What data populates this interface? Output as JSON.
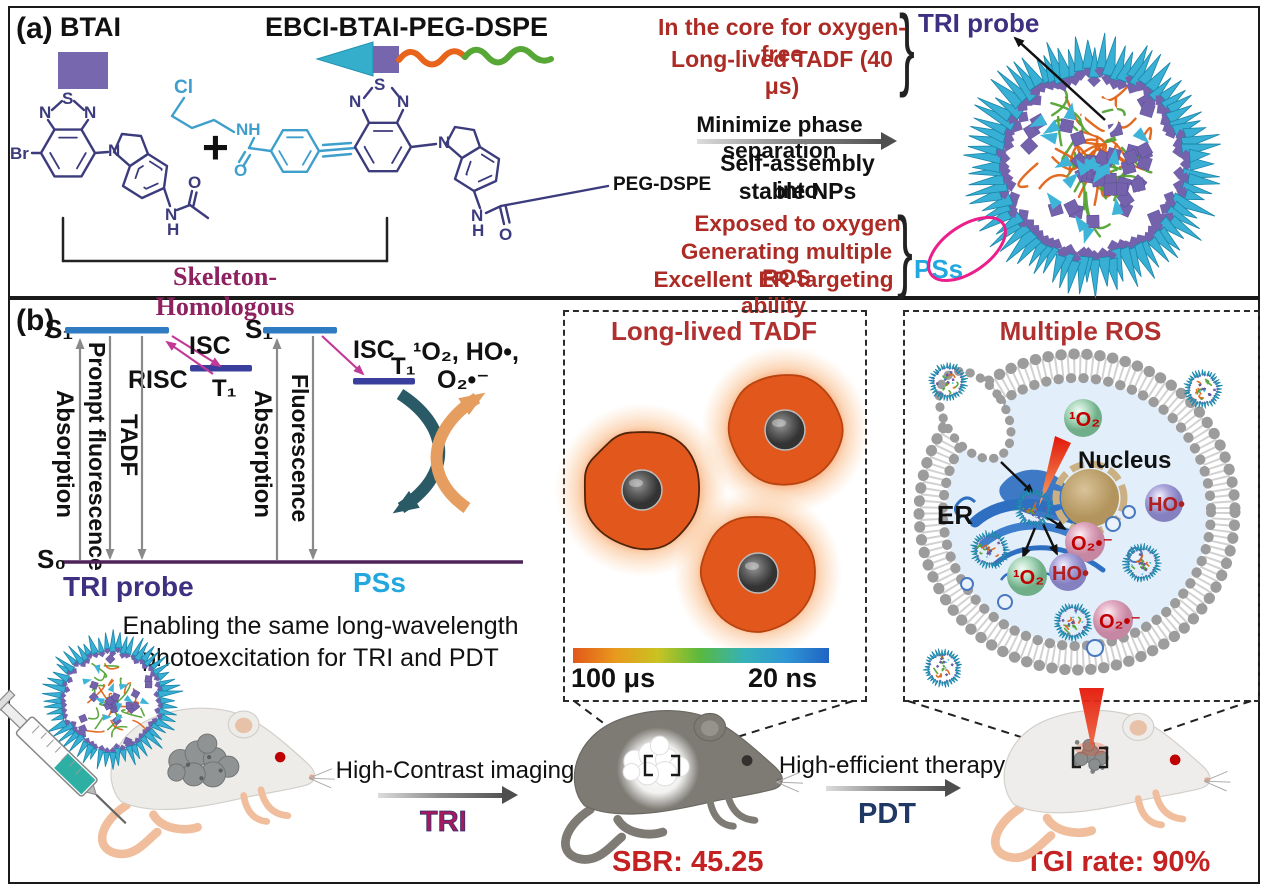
{
  "panel_a": {
    "label": "(a)",
    "btai_label": "BTAI",
    "ebci_label": "EBCI-BTAI-PEG-DSPE",
    "plus": "+",
    "peg_dspe": "PEG-DSPE",
    "skeleton": "Skeleton-Homologous",
    "core_line1": "In the core for oxygen-free",
    "core_line2": "Long-lived TADF (40 μs)",
    "tri_probe": "TRI probe",
    "minimize": "Minimize phase separation",
    "assembly_line1": "Self-assembly into",
    "assembly_line2": "stable NPs",
    "exposed_line1": "Exposed to oxygen",
    "exposed_line2": "Generating multiple ROS",
    "exposed_line3": "Excellent ER-targeting ability",
    "pss_label": "PSs",
    "brace": "}",
    "mol1_atoms": [
      "Br",
      "N",
      "S",
      "N",
      "N",
      "O",
      "N",
      "H"
    ],
    "mol2_atoms": [
      "Cl",
      "NH",
      "O",
      "N",
      "S",
      "N",
      "N",
      "N",
      "H",
      "O"
    ]
  },
  "panel_b": {
    "label": "(b)",
    "jablonski": {
      "s1": "S₁",
      "t1": "T₁",
      "s0": "S₀",
      "isc": "ISC",
      "risc": "RISC",
      "absorption": "Absorption",
      "prompt_fluorescence": "Prompt fluorescence",
      "tadf": "TADF",
      "fluorescence": "Fluorescence",
      "ros_line1": "¹O₂, HO•,",
      "ros_line2": "O₂•⁻",
      "tri_probe": "TRI probe",
      "pss": "PSs"
    },
    "enabling_line1": "Enabling the same long-wavelength",
    "enabling_line2": "photoexcitation for TRI and PDT",
    "imaging_label": "High-Contrast imaging",
    "tri_label": "TRI",
    "therapy_label": "High-efficient therapy",
    "pdt_label": "PDT",
    "sbr_value": "SBR: 45.25",
    "tgi_value": "TGI rate: 90%",
    "tadf_box": {
      "title": "Long-lived TADF",
      "scale_left": "100 μs",
      "scale_right": "20 ns"
    },
    "ros_box": {
      "title": "Multiple ROS",
      "nucleus": "Nucleus",
      "er": "ER",
      "singlet_oxygen": "¹O₂",
      "hydroxyl": "HO•",
      "superoxide": "O₂•⁻"
    }
  },
  "colors": {
    "dark_red_text": "#AD2B25",
    "stat_red": "#C42222",
    "tri_probe_purple": "#3E2F80",
    "pss_cyan": "#22A7DE",
    "pdt_navy": "#1F3864",
    "tri_magenta": "#A6195E",
    "skeleton_magenta": "#8E2160",
    "structure_navy": "#3C3B7C",
    "structure_cyan": "#3E9FCC",
    "np_cone_cyan": "#38AFD4",
    "np_square_purple": "#7463AC",
    "np_orange": "#E8641B",
    "np_green": "#55A835"
  }
}
